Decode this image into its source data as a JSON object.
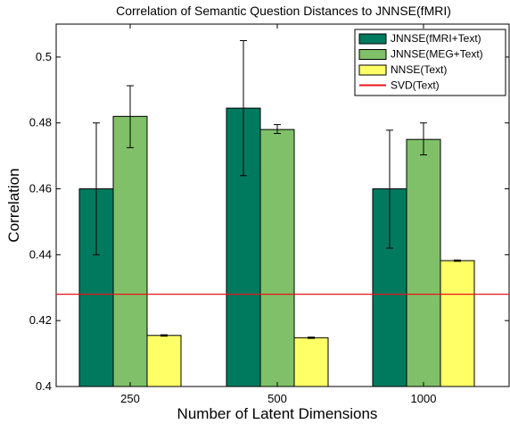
{
  "chart_data": {
    "type": "bar",
    "title": "Correlation of Semantic Question Distances to JNNSE(fMRI)",
    "xlabel": "Number of Latent Dimensions",
    "ylabel": "Correlation",
    "categories": [
      "250",
      "500",
      "1000"
    ],
    "ylim": [
      0.4,
      0.51
    ],
    "yticks": [
      0.4,
      0.42,
      0.44,
      0.46,
      0.48,
      0.5
    ],
    "ytick_labels": [
      "0.4",
      "0.42",
      "0.44",
      "0.46",
      "0.48",
      "0.5"
    ],
    "grid": false,
    "legend_position": "top-right",
    "series": [
      {
        "name": "JNNSE(fMRI+Text)",
        "color": "#007a5e",
        "values": [
          0.46,
          0.4845,
          0.46
        ],
        "errors": [
          [
            0.44,
            0.48
          ],
          [
            0.464,
            0.505
          ],
          [
            0.442,
            0.4778
          ]
        ]
      },
      {
        "name": "JNNSE(MEG+Text)",
        "color": "#80c068",
        "values": [
          0.482,
          0.478,
          0.475
        ],
        "errors": [
          [
            0.4725,
            0.4913
          ],
          [
            0.4768,
            0.4795
          ],
          [
            0.4703,
            0.48
          ]
        ]
      },
      {
        "name": "NNSE(Text)",
        "color": "#ffff66",
        "values": [
          0.4155,
          0.4148,
          0.4382
        ],
        "errors": [
          [
            0.4153,
            0.4157
          ],
          [
            0.4146,
            0.415
          ],
          [
            0.438,
            0.4384
          ]
        ]
      }
    ],
    "reference_lines": [
      {
        "name": "SVD(Text)",
        "value": 0.428,
        "color": "#e8141c"
      }
    ]
  }
}
